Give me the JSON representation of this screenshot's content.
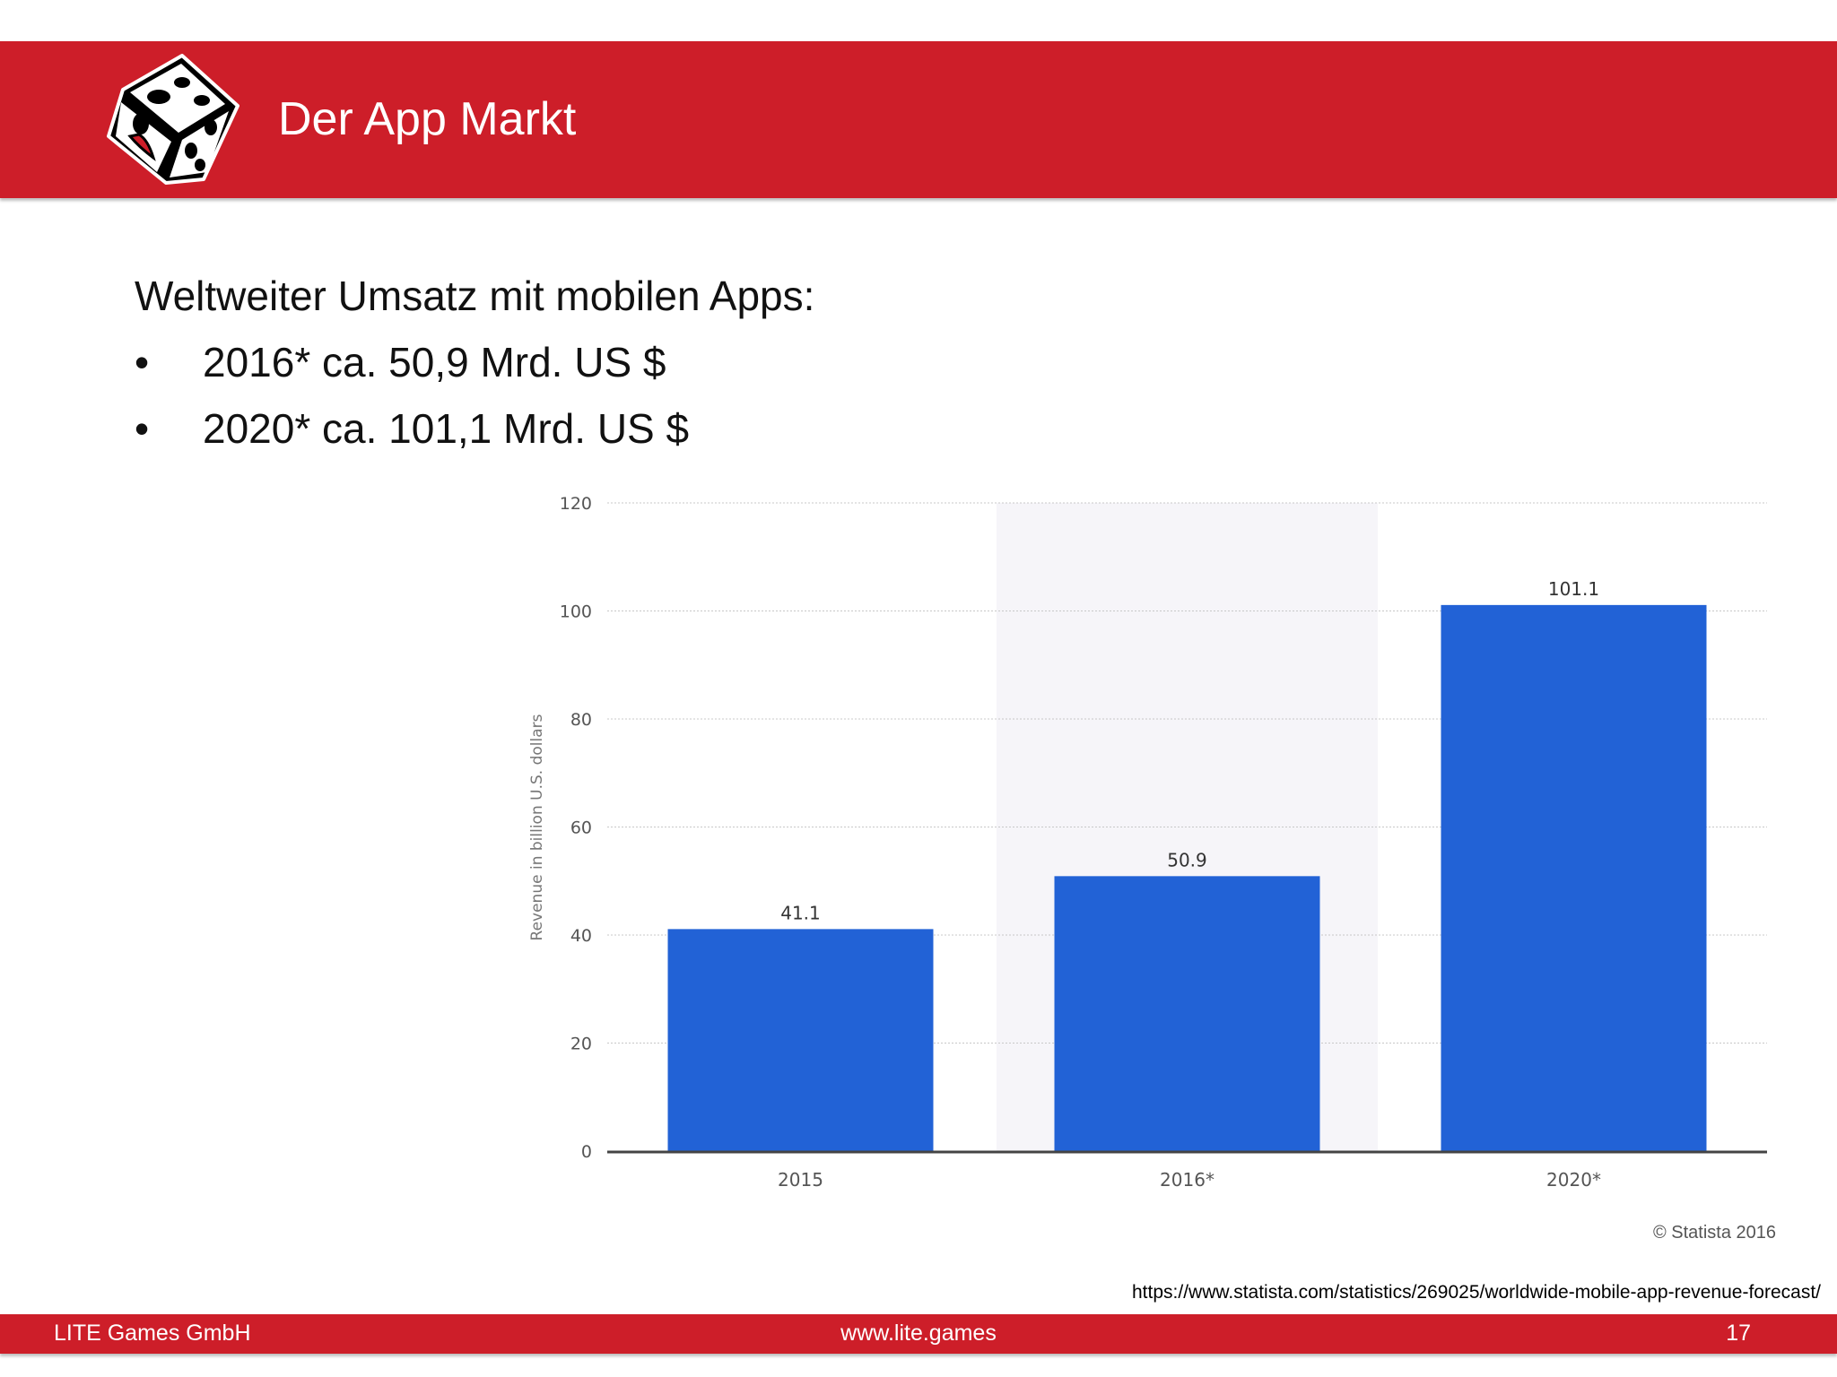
{
  "header": {
    "title": "Der App Markt"
  },
  "content": {
    "intro": "Weltweiter Umsatz mit mobilen Apps:",
    "bullets": [
      {
        "symbol": "•",
        "text": "2016* ca. 50,9 Mrd. US $"
      },
      {
        "symbol": "•",
        "text": "2020* ca. 101,1 Mrd. US $"
      }
    ]
  },
  "chart_data": {
    "type": "bar",
    "categories": [
      "2015",
      "2016*",
      "2020*"
    ],
    "values": [
      41.1,
      50.9,
      101.1
    ],
    "data_labels": [
      "41.1",
      "50.9",
      "101.1"
    ],
    "title": "",
    "xlabel": "",
    "ylabel": "Revenue in billion U.S. dollars",
    "ylim": [
      0,
      120
    ],
    "yticks": [
      0,
      20,
      40,
      60,
      80,
      100,
      120
    ],
    "grid": true,
    "forecast_highlight_categories": [
      "2016*"
    ],
    "bar_color": "#2262d6",
    "credit": "© Statista 2016"
  },
  "source": {
    "url": "https://www.statista.com/statistics/269025/worldwide-mobile-app-revenue-forecast/"
  },
  "footer": {
    "company": "LITE Games GmbH",
    "website": "www.lite.games",
    "page_number": "17"
  },
  "colors": {
    "brand_red": "#cd1e29",
    "text_dark": "#111111",
    "axis_text": "#555555"
  }
}
